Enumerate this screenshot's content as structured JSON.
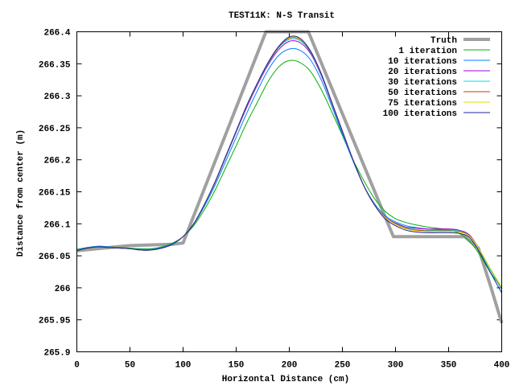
{
  "chart_data": {
    "type": "line",
    "title": "TEST11K: N-S Transit",
    "xlabel": "Horizontal Distance (cm)",
    "ylabel": "Distance from center (m)",
    "xlim": [
      0,
      400
    ],
    "ylim": [
      265.9,
      266.4
    ],
    "xticks": [
      "0",
      "50",
      "100",
      "150",
      "200",
      "250",
      "300",
      "350",
      "400"
    ],
    "xtick_values": [
      0,
      50,
      100,
      150,
      200,
      250,
      300,
      350,
      400
    ],
    "yticks": [
      "266.4",
      "266.35",
      "266.3",
      "266.25",
      "266.2",
      "266.15",
      "266.1",
      "266.05",
      "266",
      "265.95",
      "265.9"
    ],
    "ytick_values": [
      266.4,
      266.35,
      266.3,
      266.25,
      266.2,
      266.15,
      266.1,
      266.05,
      266.0,
      265.95,
      265.9
    ],
    "grid": false,
    "legend_position": "top-right",
    "x": [
      0,
      10,
      20,
      30,
      40,
      50,
      60,
      70,
      80,
      90,
      100,
      110,
      120,
      130,
      140,
      150,
      160,
      170,
      180,
      190,
      200,
      210,
      220,
      230,
      240,
      250,
      260,
      270,
      280,
      290,
      300,
      310,
      320,
      330,
      340,
      350,
      360,
      370,
      380,
      390,
      400
    ],
    "truth": {
      "name": "Truth",
      "color": "#a0a0a0",
      "x": [
        0,
        50,
        90,
        100,
        178,
        218,
        298,
        365,
        378,
        390,
        400
      ],
      "y": [
        266.058,
        266.066,
        266.068,
        266.07,
        266.4,
        266.4,
        266.08,
        266.08,
        266.062,
        266.0,
        265.945
      ]
    },
    "series": [
      {
        "name": "1 iteration",
        "color": "#00b000",
        "values": [
          266.06,
          266.063,
          266.065,
          266.064,
          266.063,
          266.062,
          266.061,
          266.061,
          266.064,
          266.07,
          266.08,
          266.097,
          266.122,
          266.152,
          266.187,
          266.222,
          266.258,
          266.29,
          266.322,
          266.345,
          266.355,
          266.352,
          266.338,
          266.31,
          266.275,
          266.238,
          266.2,
          266.168,
          266.14,
          266.12,
          266.108,
          266.102,
          266.098,
          266.095,
          266.093,
          266.09,
          266.085,
          266.072,
          266.05,
          266.022,
          266.0
        ]
      },
      {
        "name": "10 iterations",
        "color": "#0080ff",
        "values": [
          266.059,
          266.063,
          266.065,
          266.064,
          266.062,
          266.061,
          266.06,
          266.06,
          266.063,
          266.069,
          266.08,
          266.099,
          266.127,
          266.16,
          266.197,
          266.235,
          266.273,
          266.308,
          266.34,
          266.363,
          266.373,
          266.371,
          266.356,
          266.325,
          266.284,
          266.24,
          266.198,
          266.16,
          266.132,
          266.113,
          266.103,
          266.097,
          266.094,
          266.092,
          266.091,
          266.091,
          266.089,
          266.081,
          266.056,
          266.026,
          265.998
        ]
      },
      {
        "name": "20 iterations",
        "color": "#a000e0",
        "values": [
          266.058,
          266.062,
          266.064,
          266.063,
          266.062,
          266.061,
          266.059,
          266.059,
          266.062,
          266.068,
          266.08,
          266.1,
          266.13,
          266.164,
          266.203,
          266.243,
          266.282,
          266.317,
          266.348,
          266.372,
          266.385,
          266.383,
          266.366,
          266.332,
          266.288,
          266.243,
          266.2,
          266.16,
          266.13,
          266.111,
          266.101,
          266.095,
          266.093,
          266.092,
          266.092,
          266.092,
          266.09,
          266.082,
          266.057,
          266.027,
          265.999
        ]
      },
      {
        "name": "30 iterations",
        "color": "#00e0e0",
        "values": [
          266.058,
          266.062,
          266.064,
          266.063,
          266.062,
          266.061,
          266.059,
          266.059,
          266.062,
          266.068,
          266.08,
          266.1,
          266.13,
          266.165,
          266.204,
          266.244,
          266.284,
          266.319,
          266.35,
          266.375,
          266.388,
          266.386,
          266.368,
          266.334,
          266.289,
          266.244,
          266.2,
          266.16,
          266.13,
          266.11,
          266.1,
          266.094,
          266.091,
          266.09,
          266.09,
          266.09,
          266.089,
          266.081,
          266.056,
          266.026,
          265.997
        ]
      },
      {
        "name": "50 iterations",
        "color": "#c04000",
        "values": [
          266.058,
          266.062,
          266.064,
          266.063,
          266.062,
          266.061,
          266.059,
          266.059,
          266.062,
          266.068,
          266.08,
          266.1,
          266.13,
          266.165,
          266.205,
          266.245,
          266.285,
          266.32,
          266.351,
          266.376,
          266.39,
          266.388,
          266.369,
          266.335,
          266.29,
          266.245,
          266.2,
          266.16,
          266.13,
          266.11,
          266.1,
          266.093,
          266.09,
          266.089,
          266.089,
          266.089,
          266.088,
          266.081,
          266.057,
          266.028,
          266.0
        ]
      },
      {
        "name": "75 iterations",
        "color": "#e0e000",
        "values": [
          266.058,
          266.062,
          266.064,
          266.063,
          266.062,
          266.061,
          266.059,
          266.059,
          266.062,
          266.068,
          266.08,
          266.1,
          266.13,
          266.165,
          266.205,
          266.245,
          266.285,
          266.32,
          266.352,
          266.377,
          266.391,
          266.389,
          266.37,
          266.335,
          266.29,
          266.245,
          266.2,
          266.16,
          266.13,
          266.11,
          266.099,
          266.092,
          266.089,
          266.088,
          266.088,
          266.088,
          266.087,
          266.08,
          266.057,
          266.028,
          266.001
        ]
      },
      {
        "name": "100 iterations",
        "color": "#2020a0",
        "values": [
          266.058,
          266.062,
          266.064,
          266.063,
          266.062,
          266.061,
          266.059,
          266.059,
          266.062,
          266.068,
          266.08,
          266.1,
          266.13,
          266.165,
          266.205,
          266.245,
          266.285,
          266.32,
          266.352,
          266.377,
          266.392,
          266.39,
          266.37,
          266.335,
          266.29,
          266.245,
          266.2,
          266.16,
          266.13,
          266.108,
          266.097,
          266.09,
          266.087,
          266.086,
          266.086,
          266.086,
          266.085,
          266.078,
          266.053,
          266.022,
          265.992
        ]
      }
    ]
  }
}
